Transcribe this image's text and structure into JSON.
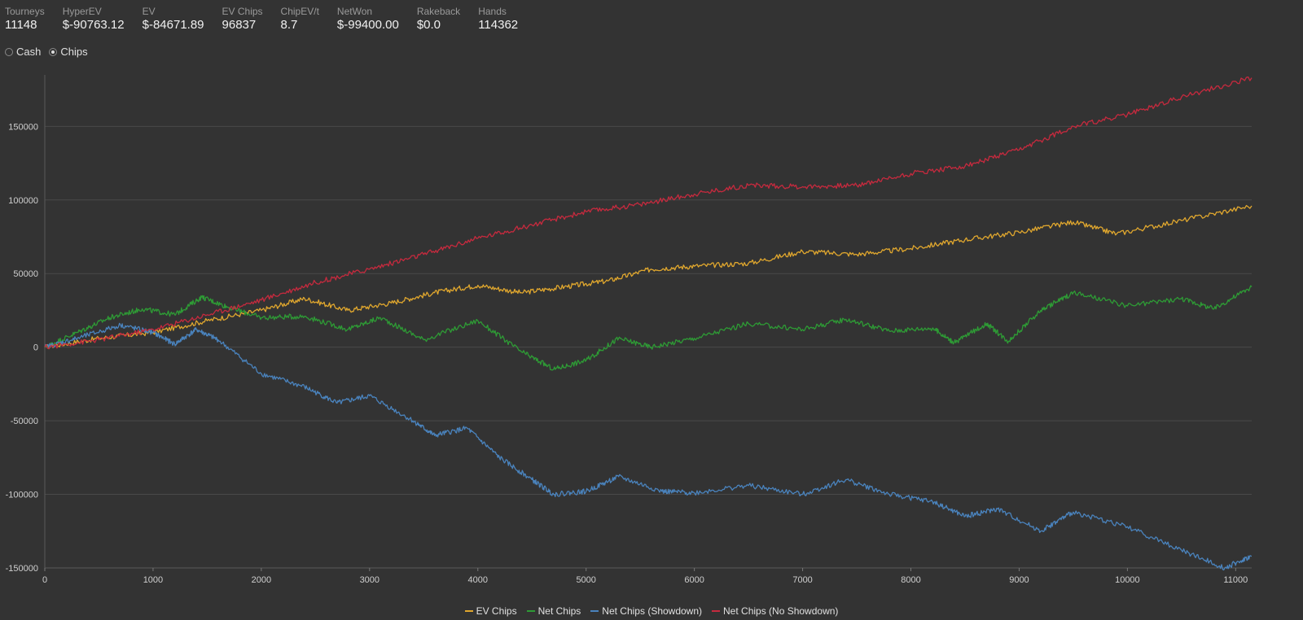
{
  "stats": [
    {
      "label": "Tourneys",
      "value": "11148"
    },
    {
      "label": "HyperEV",
      "value": "$-90763.12"
    },
    {
      "label": "EV",
      "value": "$-84671.89"
    },
    {
      "label": "EV Chips",
      "value": "96837"
    },
    {
      "label": "ChipEV/t",
      "value": "8.7"
    },
    {
      "label": "NetWon",
      "value": "$-99400.00"
    },
    {
      "label": "Rakeback",
      "value": "$0.0"
    },
    {
      "label": "Hands",
      "value": "114362"
    }
  ],
  "mode": {
    "options": [
      "Cash",
      "Chips"
    ],
    "selected": "Chips"
  },
  "colors": {
    "bg": "#333333",
    "grid": "#4a4a4a",
    "axis": "#cfcfcf"
  },
  "chart_data": {
    "type": "line",
    "xlim": [
      0,
      11148
    ],
    "ylim": [
      -150000,
      185000
    ],
    "xticks": [
      0,
      1000,
      2000,
      3000,
      4000,
      5000,
      6000,
      7000,
      8000,
      9000,
      10000,
      11000
    ],
    "yticks": [
      -150000,
      -100000,
      -50000,
      0,
      50000,
      100000,
      150000
    ],
    "grid": true,
    "legend_position": "bottom-center",
    "series": [
      {
        "name": "EV Chips",
        "color": "#e0a72e",
        "x": [
          0,
          500,
          1000,
          1500,
          2000,
          2400,
          2800,
          3200,
          3600,
          4000,
          4400,
          4800,
          5200,
          5600,
          6000,
          6500,
          7000,
          7500,
          8000,
          8500,
          9000,
          9500,
          9900,
          10500,
          11148
        ],
        "y": [
          0,
          6000,
          10000,
          18000,
          25000,
          33000,
          25000,
          30000,
          37000,
          42000,
          37000,
          41000,
          45000,
          53000,
          55000,
          57000,
          65000,
          63000,
          67000,
          73000,
          78000,
          85000,
          77000,
          86000,
          96000
        ]
      },
      {
        "name": "Net Chips",
        "color": "#2e9b35",
        "x": [
          0,
          300,
          600,
          900,
          1200,
          1450,
          1700,
          2000,
          2400,
          2800,
          3100,
          3500,
          4000,
          4400,
          4700,
          5000,
          5300,
          5600,
          6000,
          6500,
          7000,
          7400,
          7800,
          8200,
          8400,
          8700,
          8900,
          9200,
          9500,
          10000,
          10500,
          10800,
          11148
        ],
        "y": [
          0,
          10000,
          20000,
          26000,
          22000,
          34000,
          27000,
          20000,
          21000,
          12000,
          20000,
          5000,
          18000,
          -3000,
          -15000,
          -9000,
          6000,
          0,
          6000,
          16000,
          12000,
          19000,
          11000,
          13000,
          3000,
          16000,
          4000,
          25000,
          37000,
          28000,
          33000,
          26000,
          41000
        ]
      },
      {
        "name": "Net Chips (Showdown)",
        "color": "#4a83bd",
        "x": [
          0,
          300,
          700,
          1000,
          1200,
          1400,
          1600,
          2000,
          2400,
          2700,
          3000,
          3400,
          3600,
          3900,
          4200,
          4500,
          4700,
          5000,
          5300,
          5700,
          6000,
          6500,
          7000,
          7400,
          7800,
          8200,
          8500,
          8800,
          9200,
          9500,
          10000,
          10500,
          10900,
          11148
        ],
        "y": [
          0,
          6000,
          15000,
          10000,
          2000,
          12000,
          5000,
          -18000,
          -27000,
          -38000,
          -33000,
          -50000,
          -60000,
          -55000,
          -75000,
          -90000,
          -100000,
          -98000,
          -88000,
          -98000,
          -99000,
          -94000,
          -100000,
          -90000,
          -100000,
          -105000,
          -115000,
          -110000,
          -125000,
          -112000,
          -122000,
          -138000,
          -150000,
          -142000
        ]
      },
      {
        "name": "Net Chips (No Showdown)",
        "color": "#c62a3e",
        "x": [
          0,
          500,
          1000,
          1500,
          2000,
          2500,
          3000,
          3500,
          4000,
          4500,
          5000,
          5500,
          6000,
          6500,
          7000,
          7500,
          8000,
          8500,
          9000,
          9500,
          10000,
          10500,
          11148
        ],
        "y": [
          0,
          5000,
          12000,
          22000,
          32000,
          44000,
          53000,
          63000,
          74000,
          83000,
          92000,
          97000,
          104000,
          110000,
          109000,
          110000,
          118000,
          123000,
          134000,
          150000,
          158000,
          170000,
          183000
        ]
      }
    ]
  }
}
